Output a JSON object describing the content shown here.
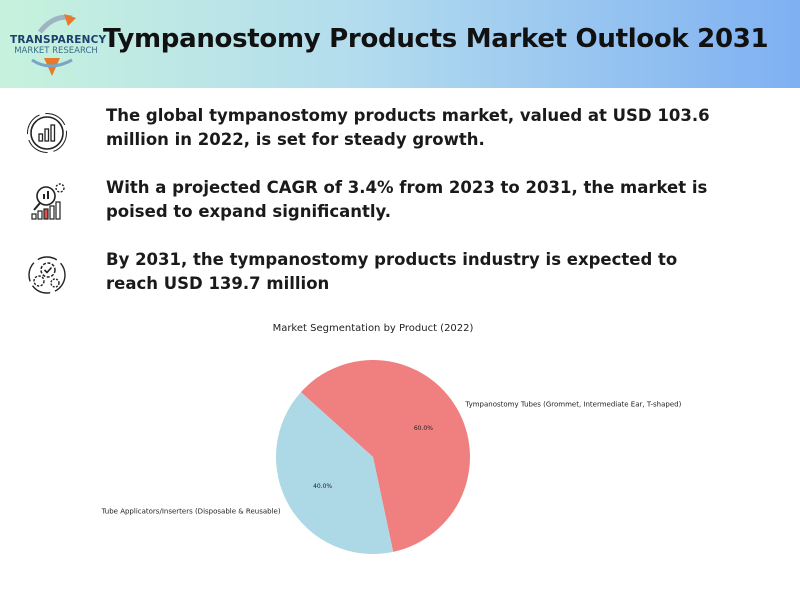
{
  "header": {
    "logo_line1": "TRANSPARENCY",
    "logo_line2": "MARKET RESEARCH",
    "title": "Tympanostomy Products Market Outlook 2031",
    "gradient_colors": [
      "#c6f2dd",
      "#b3dcee",
      "#7fb0f2"
    ]
  },
  "points": [
    {
      "icon": "analytics-chart-icon",
      "text": "The global tympanostomy products market, valued at USD 103.6 million in 2022, is set for steady growth."
    },
    {
      "icon": "growth-magnifier-icon",
      "text": "With a projected CAGR of 3.4% from 2023 to 2031, the market is poised to expand significantly."
    },
    {
      "icon": "gears-check-icon",
      "text": "By 2031, the tympanostomy products industry is expected to reach USD 139.7 million"
    }
  ],
  "chart_data": {
    "type": "pie",
    "title": "Market Segmentation by Product (2022)",
    "slices": [
      {
        "label": "Tympanostomy Tubes (Grommet, Intermediate Ear, T-shaped)",
        "value": 60.0,
        "pct_label": "60.0%",
        "color": "#f08080"
      },
      {
        "label": "Tube Applicators/Inserters (Disposable & Reusable)",
        "value": 40.0,
        "pct_label": "40.0%",
        "color": "#add8e6"
      }
    ]
  }
}
